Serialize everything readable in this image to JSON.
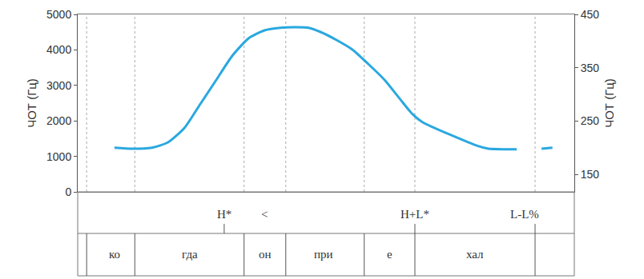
{
  "chart_data": {
    "type": "line",
    "xlim": [
      0,
      1
    ],
    "xticks": [],
    "ylim": [
      0,
      5000
    ],
    "yticks": [
      0,
      1000,
      2000,
      3000,
      4000,
      5000
    ],
    "ylabel": "ЧОТ (Гц)",
    "y2lim": [
      117,
      450
    ],
    "y2ticks": [
      150,
      250,
      350,
      450
    ],
    "y2label": "ЧОТ (Гц)",
    "x": [
      0.074,
      0.11,
      0.15,
      0.182,
      0.215,
      0.247,
      0.279,
      0.311,
      0.344,
      0.376,
      0.408,
      0.44,
      0.465,
      0.489,
      0.521,
      0.553,
      0.585,
      0.618,
      0.65,
      0.674,
      0.694,
      0.806,
      0.827,
      0.86,
      0.884,
      0.91,
      0.934,
      0.956
    ],
    "series": [
      {
        "color": "#2aa8df",
        "axis": "y2",
        "values": [
          200,
          198,
          200,
          210,
          237,
          282,
          327,
          372,
          405,
          420,
          425,
          426,
          425,
          417,
          402,
          384,
          357,
          327,
          290,
          263,
          248,
          203,
          198,
          197,
          197,
          null,
          198,
          200
        ]
      }
    ],
    "tones": {
      "marks": [
        0.295,
        0.679,
        0.921
      ],
      "labels": [
        {
          "x": 0.295,
          "label": "H*"
        },
        {
          "x": 0.376,
          "label": "<"
        },
        {
          "x": 0.679,
          "label": "H+L*"
        },
        {
          "x": 0.9,
          "label": "L-L%"
        }
      ]
    },
    "syllables": {
      "boundaries": [
        0.018,
        0.115,
        0.335,
        0.419,
        0.577,
        0.679,
        0.921
      ],
      "labels": [
        {
          "x": 0.074,
          "label": "ко"
        },
        {
          "x": 0.226,
          "label": "гда"
        },
        {
          "x": 0.377,
          "label": "он"
        },
        {
          "x": 0.495,
          "label": "при"
        },
        {
          "x": 0.628,
          "label": "е"
        },
        {
          "x": 0.8,
          "label": "хал"
        }
      ]
    }
  }
}
